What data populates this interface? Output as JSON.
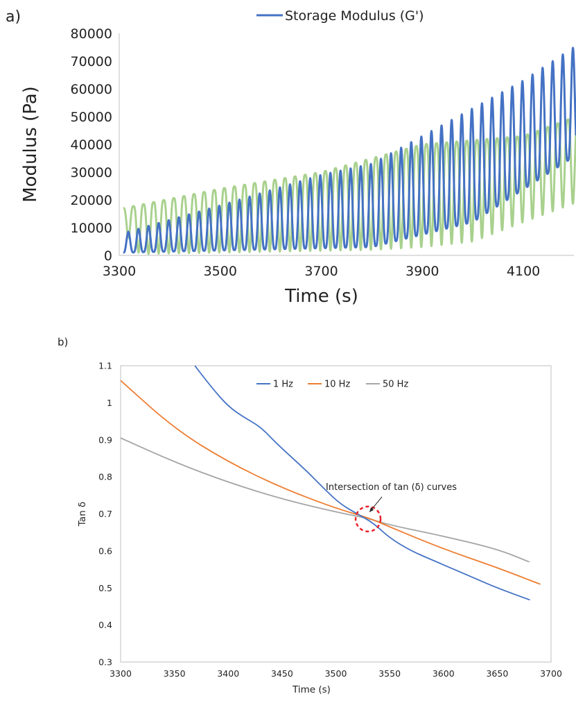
{
  "panels": {
    "a_label": "a)",
    "b_label": "b)"
  },
  "colors": {
    "storage_blue": "#4472c4",
    "loss_green": "#a9d18e",
    "hz1": "#4472c4",
    "hz10": "#ed7d31",
    "hz50": "#a5a5a5",
    "highlight": "#e8232a"
  },
  "chart_data": [
    {
      "id": "a",
      "type": "line",
      "xlabel": "Time (s)",
      "ylabel": "Modulus (Pa)",
      "xlim": [
        3300,
        4200
      ],
      "ylim": [
        0,
        80000
      ],
      "xticks": [
        3300,
        3500,
        3700,
        3900,
        4100
      ],
      "yticks": [
        0,
        10000,
        20000,
        30000,
        40000,
        50000,
        60000,
        70000,
        80000
      ],
      "grid": false,
      "legend_position": "top",
      "series": [
        {
          "name": "Storage Modulus (G')",
          "color": "#4472c4",
          "shape": "oscillating",
          "period_s": 20,
          "t_start": 3308,
          "t_end": 4204,
          "min_points": [
            [
              3308,
              1000
            ],
            [
              3800,
              3000
            ],
            [
              4000,
              12000
            ],
            [
              4204,
              36000
            ]
          ],
          "max_points": [
            [
              3308,
              8000
            ],
            [
              3500,
              18000
            ],
            [
              3700,
              29000
            ],
            [
              3800,
              33000
            ],
            [
              3900,
              43000
            ],
            [
              4000,
              53000
            ],
            [
              4100,
              63000
            ],
            [
              4204,
              75500
            ]
          ]
        },
        {
          "name": "",
          "color": "#a9d18e",
          "shape": "oscillating",
          "period_s": 20,
          "t_start": 3308,
          "t_end": 4204,
          "min_points": [
            [
              3308,
              9000
            ],
            [
              3340,
              500
            ],
            [
              3800,
              2000
            ],
            [
              3900,
              3000
            ],
            [
              4000,
              5000
            ],
            [
              4100,
              12000
            ],
            [
              4204,
              19000
            ]
          ],
          "max_points": [
            [
              3308,
              17000
            ],
            [
              3500,
              24000
            ],
            [
              3700,
              30000
            ],
            [
              3800,
              35000
            ],
            [
              3900,
              40000
            ],
            [
              4100,
              43000
            ],
            [
              4204,
              50000
            ]
          ]
        }
      ]
    },
    {
      "id": "b",
      "type": "line",
      "xlabel": "Time (s)",
      "ylabel": "Tan δ",
      "xlim": [
        3300,
        3700
      ],
      "ylim": [
        0.3,
        1.1
      ],
      "xticks": [
        3300,
        3350,
        3400,
        3450,
        3500,
        3550,
        3600,
        3650,
        3700
      ],
      "yticks": [
        0.3,
        0.4,
        0.5,
        0.6,
        0.7,
        0.8,
        0.9,
        1,
        1.1
      ],
      "grid": false,
      "legend_position": "top-center",
      "annotation": {
        "text": "Intersection of tan (δ)  curves",
        "point": [
          3530,
          0.69
        ]
      },
      "series": [
        {
          "name": "1 Hz",
          "color": "#4472c4",
          "points": [
            [
              3369,
              1.1
            ],
            [
              3385,
              1.04
            ],
            [
              3400,
              0.99
            ],
            [
              3415,
              0.96
            ],
            [
              3430,
              0.935
            ],
            [
              3445,
              0.89
            ],
            [
              3460,
              0.85
            ],
            [
              3475,
              0.81
            ],
            [
              3490,
              0.765
            ],
            [
              3505,
              0.725
            ],
            [
              3520,
              0.7
            ],
            [
              3535,
              0.675
            ],
            [
              3550,
              0.635
            ],
            [
              3570,
              0.6
            ],
            [
              3590,
              0.575
            ],
            [
              3610,
              0.55
            ],
            [
              3630,
              0.525
            ],
            [
              3650,
              0.5
            ],
            [
              3680,
              0.468
            ]
          ]
        },
        {
          "name": "10 Hz",
          "color": "#ed7d31",
          "points": [
            [
              3300,
              1.06
            ],
            [
              3350,
              0.93
            ],
            [
              3400,
              0.84
            ],
            [
              3450,
              0.77
            ],
            [
              3500,
              0.715
            ],
            [
              3530,
              0.69
            ],
            [
              3550,
              0.665
            ],
            [
              3600,
              0.605
            ],
            [
              3650,
              0.555
            ],
            [
              3690,
              0.51
            ]
          ]
        },
        {
          "name": "50 Hz",
          "color": "#a5a5a5",
          "points": [
            [
              3300,
              0.905
            ],
            [
              3350,
              0.84
            ],
            [
              3400,
              0.785
            ],
            [
              3450,
              0.74
            ],
            [
              3500,
              0.705
            ],
            [
              3530,
              0.688
            ],
            [
              3550,
              0.67
            ],
            [
              3600,
              0.64
            ],
            [
              3650,
              0.605
            ],
            [
              3680,
              0.57
            ]
          ]
        }
      ]
    }
  ]
}
